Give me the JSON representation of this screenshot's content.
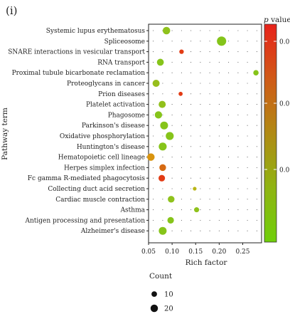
{
  "panel_label": "(i)",
  "chart_data": {
    "type": "scatter",
    "title": "",
    "xlabel": "Rich factor",
    "ylabel": "Pathway term",
    "xlim": [
      0.05,
      0.29
    ],
    "x_ticks": [
      0.05,
      0.1,
      0.15,
      0.2,
      0.25
    ],
    "x_tick_labels": [
      "0.05",
      "0.10",
      "0.15",
      "0.20",
      "0.25"
    ],
    "grid": "dotted",
    "categories": [
      "Systemic lupus erythematosus",
      "Spliceosome",
      "SNARE interactions in vesicular transport",
      "RNA transport",
      "Proximal tubule bicarbonate reclamation",
      "Proteoglycans in cancer",
      "Prion diseases",
      "Platelet activation",
      "Phagosome",
      "Parkinson's disease",
      "Oxidative phosphorylation",
      "Huntington's disease",
      "Hematopoietic cell lineage",
      "Herpes simplex infection",
      "Fc gamma R-mediated phagocytosis",
      "Collecting duct acid secretion",
      "Cardiac muscle contraction",
      "Asthma",
      "Antigen processing and presentation",
      "Alzheimer's disease"
    ],
    "points": [
      {
        "term": "Systemic lupus erythematosus",
        "rich_factor": 0.088,
        "count": 18,
        "color": "#8fc21c"
      },
      {
        "term": "Spliceosome",
        "rich_factor": 0.205,
        "count": 30,
        "color": "#84c41a"
      },
      {
        "term": "SNARE interactions in vesicular transport",
        "rich_factor": 0.12,
        "count": 5,
        "color": "#e23b14"
      },
      {
        "term": "RNA transport",
        "rich_factor": 0.075,
        "count": 15,
        "color": "#86c41a"
      },
      {
        "term": "Proximal tubule bicarbonate reclamation",
        "rich_factor": 0.278,
        "count": 8,
        "color": "#86c41a"
      },
      {
        "term": "Proteoglycans in cancer",
        "rich_factor": 0.066,
        "count": 16,
        "color": "#97be1d"
      },
      {
        "term": "Prion diseases",
        "rich_factor": 0.118,
        "count": 4,
        "color": "#e23b14"
      },
      {
        "term": "Platelet activation",
        "rich_factor": 0.079,
        "count": 16,
        "color": "#91c01c"
      },
      {
        "term": "Phagosome",
        "rich_factor": 0.071,
        "count": 17,
        "color": "#86c41a"
      },
      {
        "term": "Parkinson's disease",
        "rich_factor": 0.083,
        "count": 20,
        "color": "#86c41a"
      },
      {
        "term": "Oxidative phosphorylation",
        "rich_factor": 0.095,
        "count": 21,
        "color": "#86c41a"
      },
      {
        "term": "Huntington's disease",
        "rich_factor": 0.08,
        "count": 21,
        "color": "#86c41a"
      },
      {
        "term": "Hematopoietic cell lineage",
        "rich_factor": 0.055,
        "count": 18,
        "color": "#d9940f"
      },
      {
        "term": "Herpes simplex infection",
        "rich_factor": 0.08,
        "count": 14,
        "color": "#d66a12"
      },
      {
        "term": "Fc gamma R-mediated phagocytosis",
        "rich_factor": 0.078,
        "count": 13,
        "color": "#e23b14"
      },
      {
        "term": "Collecting duct acid secretion",
        "rich_factor": 0.148,
        "count": 3,
        "color": "#b9b515"
      },
      {
        "term": "Cardiac muscle contraction",
        "rich_factor": 0.098,
        "count": 14,
        "color": "#8fc21c"
      },
      {
        "term": "Asthma",
        "rich_factor": 0.152,
        "count": 7,
        "color": "#8fc21c"
      },
      {
        "term": "Antigen processing and presentation",
        "rich_factor": 0.097,
        "count": 13,
        "color": "#86c41a"
      },
      {
        "term": "Alzheimer's disease",
        "rich_factor": 0.08,
        "count": 20,
        "color": "#86c41a"
      }
    ],
    "colorbar": {
      "title": "p value",
      "tick_labels": [
        "0.0",
        "0.0",
        "0.0"
      ],
      "colors": [
        "#e8221a",
        "#d05a17",
        "#b08a14",
        "#8fb412",
        "#6fcf0a"
      ]
    },
    "size_legend": {
      "title": "Count",
      "entries": [
        {
          "label": "10",
          "count": 10
        },
        {
          "label": "20",
          "count": 20
        }
      ]
    }
  }
}
